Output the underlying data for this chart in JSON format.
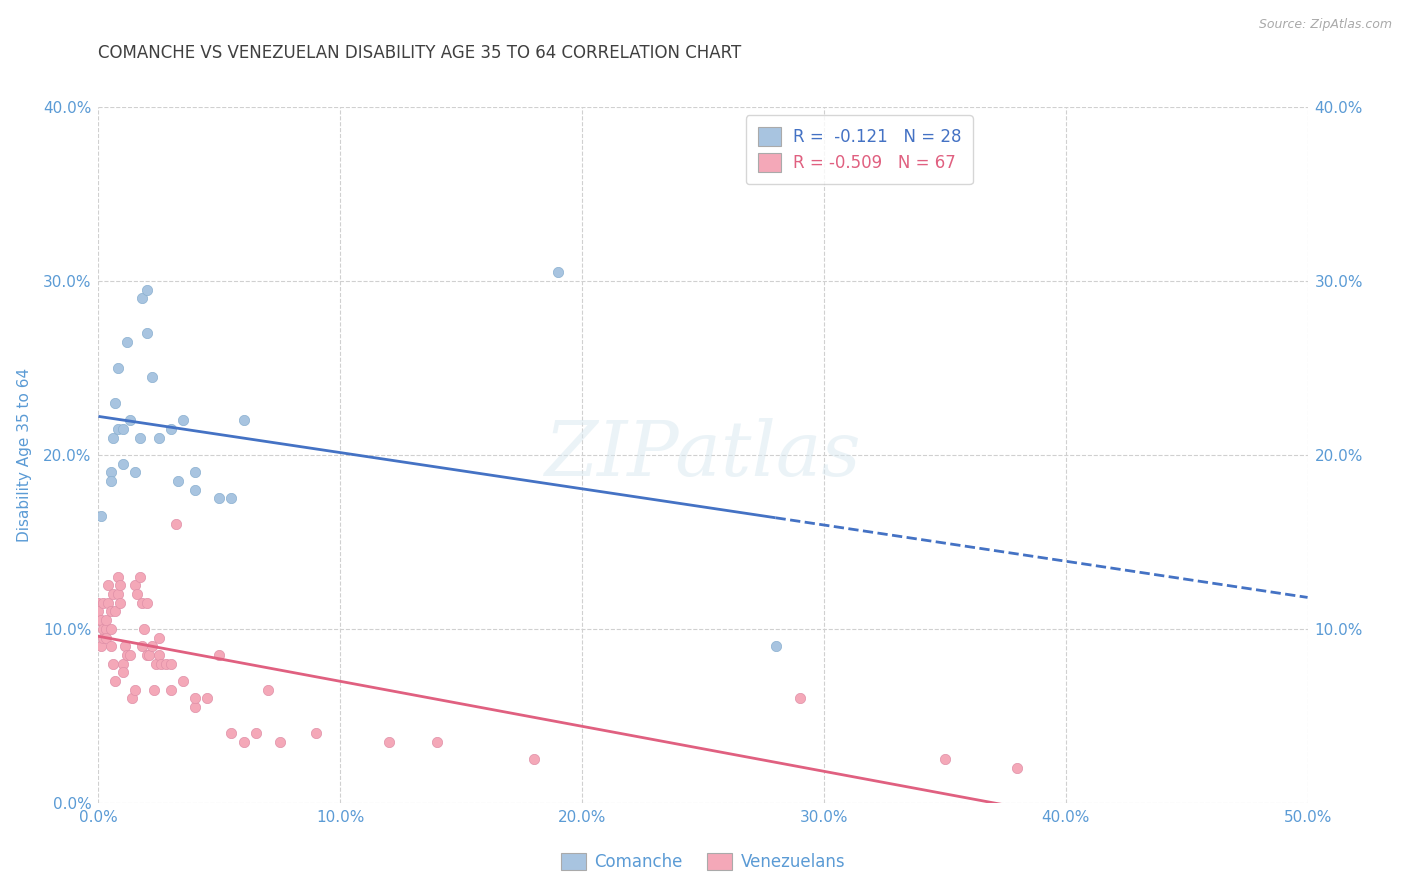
{
  "title": "COMANCHE VS VENEZUELAN DISABILITY AGE 35 TO 64 CORRELATION CHART",
  "source": "Source: ZipAtlas.com",
  "ylabel": "Disability Age 35 to 64",
  "xlim": [
    0,
    50
  ],
  "ylim": [
    0,
    40
  ],
  "xticks": [
    0,
    10,
    20,
    30,
    40,
    50
  ],
  "yticks": [
    0,
    10,
    20,
    30,
    40
  ],
  "xtick_labels": [
    "0.0%",
    "10.0%",
    "20.0%",
    "30.0%",
    "40.0%",
    "50.0%"
  ],
  "ytick_labels": [
    "0.0%",
    "10.0%",
    "20.0%",
    "30.0%",
    "40.0%"
  ],
  "right_ytick_labels": [
    "10.0%",
    "20.0%",
    "30.0%",
    "40.0%"
  ],
  "right_yticks": [
    10,
    20,
    30,
    40
  ],
  "comanche_color": "#a8c4e0",
  "venezuelan_color": "#f4a8b8",
  "comanche_line_color": "#4472c4",
  "venezuelan_line_color": "#e06080",
  "R_comanche": -0.121,
  "N_comanche": 28,
  "R_venezuelan": -0.509,
  "N_venezuelan": 67,
  "title_color": "#404040",
  "tick_color": "#5b9bd5",
  "watermark": "ZIPatlas",
  "comanche_x": [
    0.1,
    0.5,
    0.5,
    0.6,
    0.7,
    0.8,
    0.8,
    1.0,
    1.0,
    1.2,
    1.3,
    1.5,
    1.7,
    1.8,
    2.0,
    2.0,
    2.2,
    2.5,
    3.0,
    3.3,
    3.5,
    4.0,
    4.0,
    5.0,
    5.5,
    6.0,
    19.0,
    28.0
  ],
  "comanche_y": [
    16.5,
    19.0,
    18.5,
    21.0,
    23.0,
    21.5,
    25.0,
    21.5,
    19.5,
    26.5,
    22.0,
    19.0,
    21.0,
    29.0,
    29.5,
    27.0,
    24.5,
    21.0,
    21.5,
    18.5,
    22.0,
    18.0,
    19.0,
    17.5,
    17.5,
    22.0,
    30.5,
    9.0
  ],
  "venezuelan_x": [
    0.0,
    0.0,
    0.0,
    0.1,
    0.1,
    0.2,
    0.2,
    0.2,
    0.3,
    0.3,
    0.3,
    0.4,
    0.4,
    0.5,
    0.5,
    0.5,
    0.6,
    0.6,
    0.7,
    0.7,
    0.8,
    0.8,
    0.9,
    0.9,
    1.0,
    1.0,
    1.1,
    1.2,
    1.3,
    1.4,
    1.5,
    1.5,
    1.6,
    1.7,
    1.8,
    1.8,
    1.9,
    2.0,
    2.0,
    2.1,
    2.2,
    2.3,
    2.4,
    2.5,
    2.5,
    2.6,
    2.8,
    3.0,
    3.0,
    3.2,
    3.5,
    4.0,
    4.0,
    4.5,
    5.0,
    5.5,
    6.0,
    6.5,
    7.0,
    7.5,
    9.0,
    12.0,
    14.0,
    18.0,
    29.0,
    35.0,
    38.0
  ],
  "venezuelan_y": [
    11.5,
    10.5,
    11.0,
    10.5,
    9.0,
    9.5,
    10.0,
    11.5,
    10.0,
    10.5,
    9.5,
    11.5,
    12.5,
    9.0,
    10.0,
    11.0,
    12.0,
    8.0,
    7.0,
    11.0,
    12.0,
    13.0,
    12.5,
    11.5,
    8.0,
    7.5,
    9.0,
    8.5,
    8.5,
    6.0,
    6.5,
    12.5,
    12.0,
    13.0,
    11.5,
    9.0,
    10.0,
    8.5,
    11.5,
    8.5,
    9.0,
    6.5,
    8.0,
    9.5,
    8.5,
    8.0,
    8.0,
    8.0,
    6.5,
    16.0,
    7.0,
    5.5,
    6.0,
    6.0,
    8.5,
    4.0,
    3.5,
    4.0,
    6.5,
    3.5,
    4.0,
    3.5,
    3.5,
    2.5,
    6.0,
    2.5,
    2.0
  ],
  "grid_color": "#d0d0d0",
  "background_color": "#ffffff"
}
